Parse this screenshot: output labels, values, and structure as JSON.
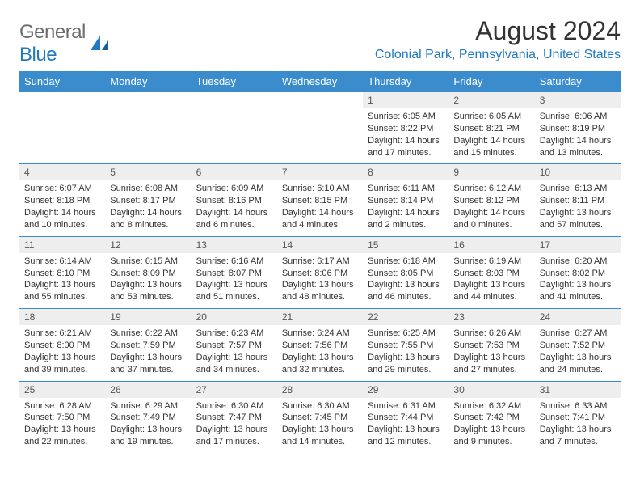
{
  "logo": {
    "text1": "General",
    "text2": "Blue"
  },
  "title": "August 2024",
  "location": "Colonial Park, Pennsylvania, United States",
  "colors": {
    "header_bg": "#3a8ccc",
    "header_text": "#ffffff",
    "accent": "#2179c1",
    "daynum_bg": "#eeeeee",
    "border": "#3a8ccc"
  },
  "dayHeaders": [
    "Sunday",
    "Monday",
    "Tuesday",
    "Wednesday",
    "Thursday",
    "Friday",
    "Saturday"
  ],
  "weeks": [
    [
      null,
      null,
      null,
      null,
      {
        "n": "1",
        "sr": "6:05 AM",
        "ss": "8:22 PM",
        "dl": "14 hours and 17 minutes."
      },
      {
        "n": "2",
        "sr": "6:05 AM",
        "ss": "8:21 PM",
        "dl": "14 hours and 15 minutes."
      },
      {
        "n": "3",
        "sr": "6:06 AM",
        "ss": "8:19 PM",
        "dl": "14 hours and 13 minutes."
      }
    ],
    [
      {
        "n": "4",
        "sr": "6:07 AM",
        "ss": "8:18 PM",
        "dl": "14 hours and 10 minutes."
      },
      {
        "n": "5",
        "sr": "6:08 AM",
        "ss": "8:17 PM",
        "dl": "14 hours and 8 minutes."
      },
      {
        "n": "6",
        "sr": "6:09 AM",
        "ss": "8:16 PM",
        "dl": "14 hours and 6 minutes."
      },
      {
        "n": "7",
        "sr": "6:10 AM",
        "ss": "8:15 PM",
        "dl": "14 hours and 4 minutes."
      },
      {
        "n": "8",
        "sr": "6:11 AM",
        "ss": "8:14 PM",
        "dl": "14 hours and 2 minutes."
      },
      {
        "n": "9",
        "sr": "6:12 AM",
        "ss": "8:12 PM",
        "dl": "14 hours and 0 minutes."
      },
      {
        "n": "10",
        "sr": "6:13 AM",
        "ss": "8:11 PM",
        "dl": "13 hours and 57 minutes."
      }
    ],
    [
      {
        "n": "11",
        "sr": "6:14 AM",
        "ss": "8:10 PM",
        "dl": "13 hours and 55 minutes."
      },
      {
        "n": "12",
        "sr": "6:15 AM",
        "ss": "8:09 PM",
        "dl": "13 hours and 53 minutes."
      },
      {
        "n": "13",
        "sr": "6:16 AM",
        "ss": "8:07 PM",
        "dl": "13 hours and 51 minutes."
      },
      {
        "n": "14",
        "sr": "6:17 AM",
        "ss": "8:06 PM",
        "dl": "13 hours and 48 minutes."
      },
      {
        "n": "15",
        "sr": "6:18 AM",
        "ss": "8:05 PM",
        "dl": "13 hours and 46 minutes."
      },
      {
        "n": "16",
        "sr": "6:19 AM",
        "ss": "8:03 PM",
        "dl": "13 hours and 44 minutes."
      },
      {
        "n": "17",
        "sr": "6:20 AM",
        "ss": "8:02 PM",
        "dl": "13 hours and 41 minutes."
      }
    ],
    [
      {
        "n": "18",
        "sr": "6:21 AM",
        "ss": "8:00 PM",
        "dl": "13 hours and 39 minutes."
      },
      {
        "n": "19",
        "sr": "6:22 AM",
        "ss": "7:59 PM",
        "dl": "13 hours and 37 minutes."
      },
      {
        "n": "20",
        "sr": "6:23 AM",
        "ss": "7:57 PM",
        "dl": "13 hours and 34 minutes."
      },
      {
        "n": "21",
        "sr": "6:24 AM",
        "ss": "7:56 PM",
        "dl": "13 hours and 32 minutes."
      },
      {
        "n": "22",
        "sr": "6:25 AM",
        "ss": "7:55 PM",
        "dl": "13 hours and 29 minutes."
      },
      {
        "n": "23",
        "sr": "6:26 AM",
        "ss": "7:53 PM",
        "dl": "13 hours and 27 minutes."
      },
      {
        "n": "24",
        "sr": "6:27 AM",
        "ss": "7:52 PM",
        "dl": "13 hours and 24 minutes."
      }
    ],
    [
      {
        "n": "25",
        "sr": "6:28 AM",
        "ss": "7:50 PM",
        "dl": "13 hours and 22 minutes."
      },
      {
        "n": "26",
        "sr": "6:29 AM",
        "ss": "7:49 PM",
        "dl": "13 hours and 19 minutes."
      },
      {
        "n": "27",
        "sr": "6:30 AM",
        "ss": "7:47 PM",
        "dl": "13 hours and 17 minutes."
      },
      {
        "n": "28",
        "sr": "6:30 AM",
        "ss": "7:45 PM",
        "dl": "13 hours and 14 minutes."
      },
      {
        "n": "29",
        "sr": "6:31 AM",
        "ss": "7:44 PM",
        "dl": "13 hours and 12 minutes."
      },
      {
        "n": "30",
        "sr": "6:32 AM",
        "ss": "7:42 PM",
        "dl": "13 hours and 9 minutes."
      },
      {
        "n": "31",
        "sr": "6:33 AM",
        "ss": "7:41 PM",
        "dl": "13 hours and 7 minutes."
      }
    ]
  ],
  "labels": {
    "sunrise": "Sunrise: ",
    "sunset": "Sunset: ",
    "daylight": "Daylight: "
  }
}
